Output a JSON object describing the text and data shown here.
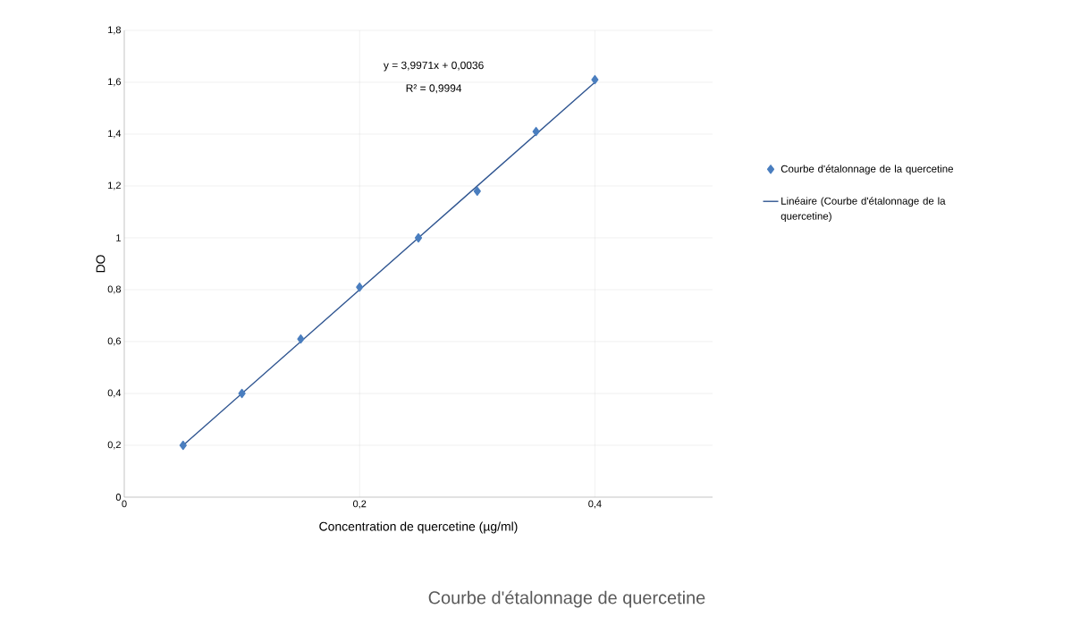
{
  "chart_data": {
    "type": "scatter",
    "title": "Courbe d'étalonnage de quercetine",
    "xlabel": "Concentration de quercetine (µg/ml)",
    "ylabel": "DO",
    "annotations": [
      "y = 3,9971x + 0,0036",
      "R² = 0,9994"
    ],
    "x": [
      0.05,
      0.1,
      0.15,
      0.2,
      0.25,
      0.3,
      0.35,
      0.4
    ],
    "series": [
      {
        "name": "Courbe d'étalonnage de la quercetine",
        "color": "#4a7ebf",
        "values": [
          0.2,
          0.4,
          0.61,
          0.81,
          1.0,
          1.18,
          1.41,
          1.61
        ],
        "marker": "diamond"
      },
      {
        "name": "Linéaire (Courbe d'étalonnage de la quercetine)",
        "type": "line",
        "color": "#2e5490",
        "x": [
          0.05,
          0.4
        ],
        "values": [
          0.2,
          1.6
        ],
        "marker": "none",
        "line_style": "solid"
      }
    ],
    "xlim": [
      0,
      0.5
    ],
    "ylim": [
      0,
      1.8
    ],
    "xticks": [
      0,
      {
        "value": 0.2,
        "label": "0,2"
      },
      {
        "value": 0.4,
        "label": "0,4"
      }
    ],
    "yticks": [
      0,
      {
        "value": 0.2,
        "label": "0,2"
      },
      {
        "value": 0.4,
        "label": "0,4"
      },
      {
        "value": 0.6,
        "label": "0,6"
      },
      {
        "value": 0.8,
        "label": "0,8"
      },
      1,
      {
        "value": 1.2,
        "label": "1,2"
      },
      {
        "value": 1.4,
        "label": "1,4"
      },
      {
        "value": 1.6,
        "label": "1,6"
      },
      {
        "value": 1.8,
        "label": "1,8"
      }
    ],
    "grid": true,
    "legend": "right"
  }
}
